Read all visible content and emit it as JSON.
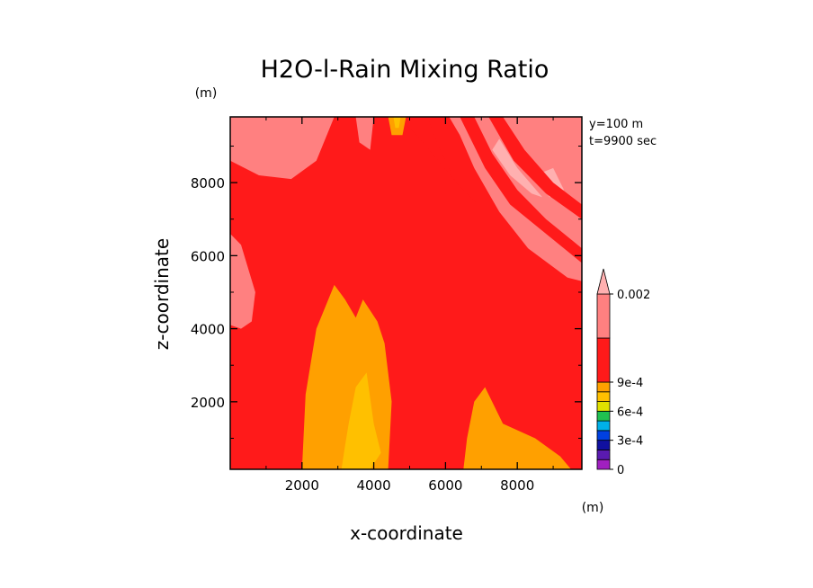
{
  "chart_data": {
    "type": "heatmap",
    "title": "H2O-l-Rain Mixing Ratio",
    "xlabel": "x-coordinate",
    "ylabel": "z-coordinate",
    "x_unit": "(m)",
    "y_unit": "(m)",
    "xlim": [
      0,
      9800
    ],
    "ylim": [
      150,
      9800
    ],
    "x_ticks": [
      2000,
      4000,
      6000,
      8000
    ],
    "y_ticks": [
      2000,
      4000,
      6000,
      8000
    ],
    "info": [
      "y=100 m",
      "t=9900 sec"
    ],
    "colorbar": {
      "levels": [
        0,
        0.0001,
        0.0002,
        0.0003,
        0.0004,
        0.0005,
        0.0006,
        0.0007,
        0.0008,
        0.0009,
        0.001,
        0.0015,
        0.002
      ],
      "colors": [
        "#a020c0",
        "#5a1ab0",
        "#1010a0",
        "#0040e0",
        "#00b0e8",
        "#20c050",
        "#e0e000",
        "#ffc000",
        "#ffa000",
        "#ff8c00",
        "#ff1a1a",
        "#ff8080",
        "#ffb0b0"
      ],
      "tick_labels": [
        "0",
        "3e-4",
        "6e-4",
        "9e-4",
        "0.002"
      ],
      "tick_values": [
        0,
        0.0003,
        0.0006,
        0.0009,
        0.002
      ]
    },
    "regions": [
      {
        "name": "upper-left-pink",
        "level": 0.0017,
        "points": [
          [
            0,
            9800
          ],
          [
            2900,
            9800
          ],
          [
            2400,
            8600
          ],
          [
            1700,
            8100
          ],
          [
            800,
            8200
          ],
          [
            0,
            8600
          ]
        ]
      },
      {
        "name": "upper-left-pink-2",
        "level": 0.0017,
        "points": [
          [
            800,
            9800
          ],
          [
            1700,
            9800
          ],
          [
            2000,
            9000
          ],
          [
            1500,
            8900
          ],
          [
            1000,
            9200
          ]
        ]
      },
      {
        "name": "left-pink",
        "level": 0.0017,
        "points": [
          [
            0,
            6600
          ],
          [
            300,
            6300
          ],
          [
            700,
            5000
          ],
          [
            600,
            4200
          ],
          [
            300,
            4000
          ],
          [
            0,
            4100
          ]
        ]
      },
      {
        "name": "upper-right-pink",
        "level": 0.0017,
        "points": [
          [
            6100,
            9800
          ],
          [
            9800,
            9800
          ],
          [
            9800,
            5300
          ],
          [
            9400,
            5400
          ],
          [
            8300,
            6200
          ],
          [
            7500,
            7200
          ],
          [
            6800,
            8400
          ],
          [
            6400,
            9300
          ]
        ]
      },
      {
        "name": "upper-mid-pink",
        "level": 0.0017,
        "points": [
          [
            3500,
            9800
          ],
          [
            4000,
            9800
          ],
          [
            3900,
            8900
          ],
          [
            3600,
            9100
          ]
        ]
      },
      {
        "name": "right-pink-light",
        "level": 0.0021,
        "points": [
          [
            7500,
            9200
          ],
          [
            8000,
            8400
          ],
          [
            8700,
            7600
          ],
          [
            8400,
            7700
          ],
          [
            7800,
            8200
          ],
          [
            7300,
            8900
          ]
        ]
      },
      {
        "name": "right-pink-light-2",
        "level": 0.0021,
        "points": [
          [
            9000,
            8400
          ],
          [
            9300,
            7800
          ],
          [
            8900,
            7600
          ],
          [
            8500,
            8200
          ]
        ]
      },
      {
        "name": "red-streak-1",
        "level": 0.0012,
        "points": [
          [
            4700,
            9800
          ],
          [
            5500,
            9800
          ],
          [
            5800,
            9000
          ],
          [
            6300,
            8000
          ],
          [
            6900,
            7400
          ],
          [
            6400,
            7900
          ],
          [
            5800,
            8600
          ],
          [
            5200,
            9300
          ]
        ]
      },
      {
        "name": "red-streak-2",
        "level": 0.0012,
        "points": [
          [
            6400,
            9800
          ],
          [
            6800,
            9800
          ],
          [
            7300,
            8800
          ],
          [
            8000,
            7800
          ],
          [
            8800,
            7000
          ],
          [
            9800,
            6200
          ],
          [
            9800,
            5800
          ],
          [
            8800,
            6600
          ],
          [
            7800,
            7400
          ],
          [
            7100,
            8400
          ]
        ]
      },
      {
        "name": "red-streak-3",
        "level": 0.0012,
        "points": [
          [
            7200,
            9800
          ],
          [
            7600,
            9800
          ],
          [
            8200,
            8900
          ],
          [
            9000,
            8000
          ],
          [
            9800,
            7400
          ],
          [
            9800,
            7000
          ],
          [
            8800,
            7700
          ],
          [
            7900,
            8600
          ]
        ]
      },
      {
        "name": "orange-column",
        "level": 0.00085,
        "points": [
          [
            2000,
            150
          ],
          [
            4400,
            150
          ],
          [
            4500,
            2000
          ],
          [
            4300,
            3600
          ],
          [
            4100,
            4200
          ],
          [
            3700,
            4800
          ],
          [
            3500,
            4300
          ],
          [
            3200,
            4800
          ],
          [
            2900,
            5200
          ],
          [
            2400,
            4000
          ],
          [
            2100,
            2200
          ]
        ]
      },
      {
        "name": "orange-right",
        "level": 0.00085,
        "points": [
          [
            6500,
            150
          ],
          [
            9500,
            150
          ],
          [
            9200,
            500
          ],
          [
            8500,
            1000
          ],
          [
            7600,
            1400
          ],
          [
            7100,
            2400
          ],
          [
            6800,
            2000
          ],
          [
            6600,
            1000
          ]
        ]
      },
      {
        "name": "orange-top",
        "level": 0.00085,
        "points": [
          [
            4400,
            9800
          ],
          [
            4900,
            9800
          ],
          [
            4800,
            9300
          ],
          [
            4500,
            9300
          ]
        ]
      },
      {
        "name": "yellow-core",
        "level": 0.00075,
        "points": [
          [
            3100,
            150
          ],
          [
            3900,
            150
          ],
          [
            4200,
            600
          ],
          [
            4000,
            1400
          ],
          [
            3800,
            2800
          ],
          [
            3500,
            2400
          ],
          [
            3300,
            1400
          ],
          [
            3200,
            800
          ]
        ]
      },
      {
        "name": "yellow-top",
        "level": 0.00075,
        "points": [
          [
            4550,
            9800
          ],
          [
            4750,
            9800
          ],
          [
            4700,
            9500
          ],
          [
            4600,
            9500
          ]
        ]
      }
    ]
  }
}
